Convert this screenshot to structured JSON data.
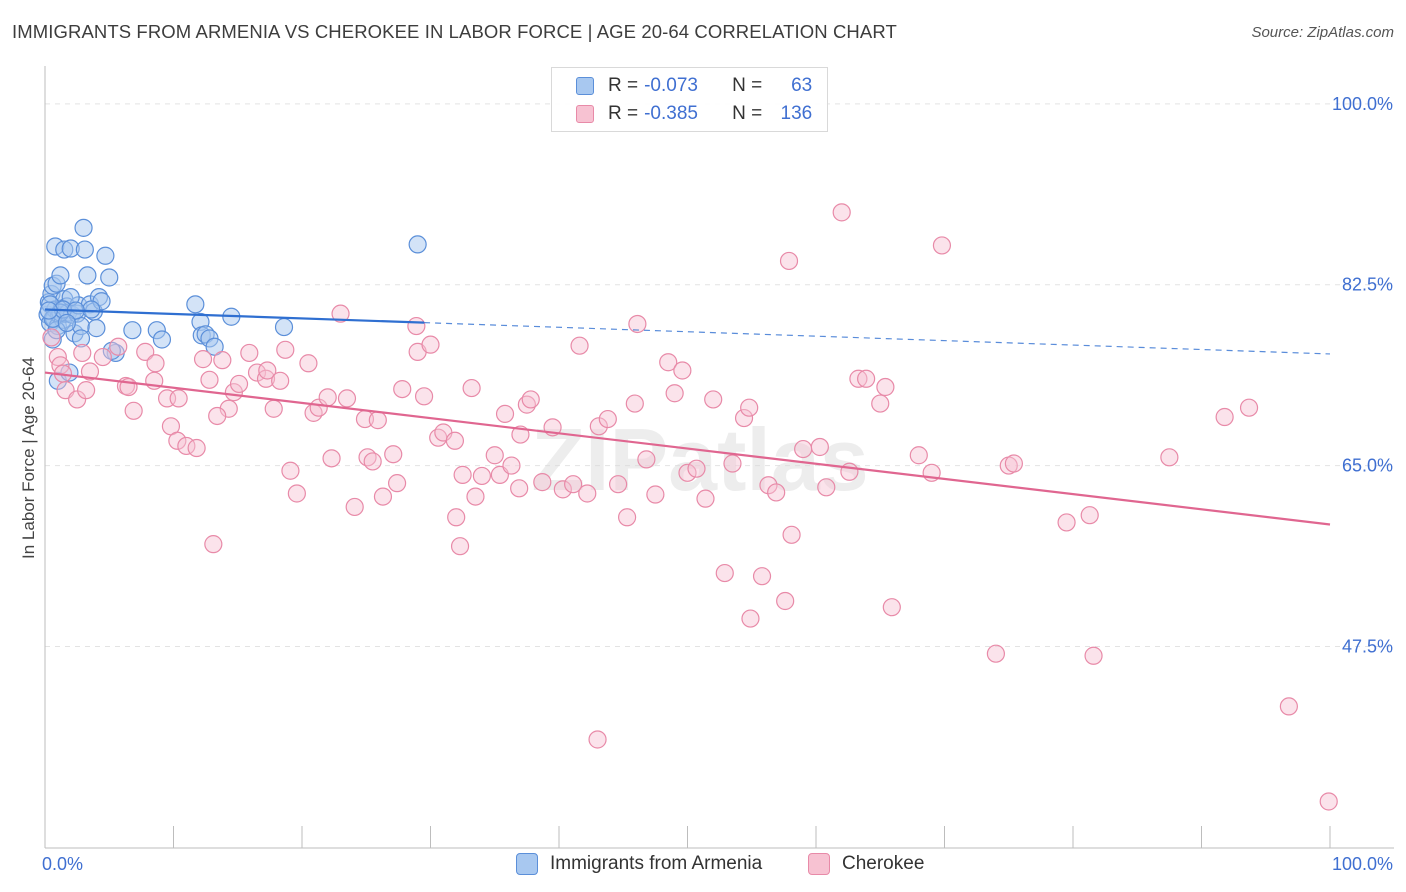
{
  "header": {
    "title": "IMMIGRANTS FROM ARMENIA VS CHEROKEE IN LABOR FORCE | AGE 20-64 CORRELATION CHART",
    "source": "Source: ZipAtlas.com"
  },
  "legend_top": {
    "rows": [
      {
        "r_label": "R =",
        "r_value": "-0.073",
        "n_label": "N =",
        "n_value": "63"
      },
      {
        "r_label": "R =",
        "r_value": "-0.385",
        "n_label": "N =",
        "n_value": "136"
      }
    ]
  },
  "legend_bottom": {
    "items": [
      {
        "label": "Immigrants from Armenia"
      },
      {
        "label": "Cherokee"
      }
    ]
  },
  "watermark": "ZIPatlas",
  "colors": {
    "armenia_fill": "#a8c8f0",
    "armenia_stroke": "#5b8fd9",
    "armenia_line": "#2f6fd1",
    "cherokee_fill": "#f7c2d2",
    "cherokee_stroke": "#e88aa8",
    "cherokee_line": "#e06690",
    "tick_text": "#3f6fd1",
    "grid": "#e3e3e3"
  },
  "chart_data": {
    "type": "scatter",
    "title": "IMMIGRANTS FROM ARMENIA VS CHEROKEE IN LABOR FORCE | AGE 20-64 CORRELATION CHART",
    "xlabel": "",
    "ylabel": "In Labor Force | Age 20-64",
    "xlim": [
      0,
      100
    ],
    "ylim": [
      28.0,
      102.5
    ],
    "x_tick_labels": [
      "0.0%",
      "100.0%"
    ],
    "y_ticks": [
      100.0,
      82.5,
      65.0,
      47.5
    ],
    "y_tick_labels": [
      "100.0%",
      "82.5%",
      "65.0%",
      "47.5%"
    ],
    "grid": true,
    "legend_position": "top-center",
    "series": [
      {
        "name": "Immigrants from Armenia",
        "r": -0.073,
        "n": 63,
        "trend": {
          "x0": 0.0,
          "y0": 80.1,
          "x1": 100.0,
          "y1": 75.8,
          "solid_until_x": 29.5
        },
        "points": [
          [
            0.2,
            79.6
          ],
          [
            0.3,
            80.8
          ],
          [
            0.4,
            78.8
          ],
          [
            0.5,
            81.6
          ],
          [
            0.6,
            82.4
          ],
          [
            0.6,
            77.2
          ],
          [
            0.7,
            79.2
          ],
          [
            0.8,
            86.2
          ],
          [
            0.8,
            80.1
          ],
          [
            0.9,
            82.6
          ],
          [
            1.0,
            78.5
          ],
          [
            1.0,
            73.2
          ],
          [
            1.1,
            79.6
          ],
          [
            1.2,
            83.4
          ],
          [
            1.3,
            80.2
          ],
          [
            1.4,
            79.1
          ],
          [
            1.5,
            85.9
          ],
          [
            1.5,
            81.1
          ],
          [
            1.6,
            79.7
          ],
          [
            1.7,
            80.4
          ],
          [
            1.8,
            79.8
          ],
          [
            1.9,
            74.0
          ],
          [
            2.0,
            86.0
          ],
          [
            2.1,
            79.6
          ],
          [
            2.3,
            77.8
          ],
          [
            2.5,
            79.7
          ],
          [
            2.6,
            80.5
          ],
          [
            2.8,
            78.5
          ],
          [
            2.8,
            77.3
          ],
          [
            3.0,
            88.0
          ],
          [
            3.1,
            85.9
          ],
          [
            3.3,
            83.4
          ],
          [
            3.5,
            80.6
          ],
          [
            3.8,
            79.9
          ],
          [
            4.0,
            78.3
          ],
          [
            4.2,
            81.3
          ],
          [
            4.4,
            80.9
          ],
          [
            4.7,
            85.3
          ],
          [
            5.0,
            83.2
          ],
          [
            5.5,
            75.9
          ],
          [
            6.8,
            78.1
          ],
          [
            8.7,
            78.1
          ],
          [
            9.1,
            77.2
          ],
          [
            11.7,
            80.6
          ],
          [
            12.1,
            78.9
          ],
          [
            12.2,
            77.6
          ],
          [
            12.5,
            77.7
          ],
          [
            12.8,
            77.3
          ],
          [
            13.2,
            76.5
          ],
          [
            14.5,
            79.4
          ],
          [
            18.6,
            78.4
          ],
          [
            29.0,
            86.4
          ],
          [
            0.4,
            80.6
          ],
          [
            1.2,
            79.8
          ],
          [
            2.0,
            81.3
          ],
          [
            0.9,
            78.1
          ],
          [
            5.2,
            76.1
          ],
          [
            3.6,
            80.1
          ],
          [
            0.6,
            79.2
          ],
          [
            1.4,
            80.1
          ],
          [
            2.4,
            80.0
          ],
          [
            0.3,
            80.0
          ],
          [
            1.7,
            78.8
          ]
        ]
      },
      {
        "name": "Cherokee",
        "r": -0.385,
        "n": 136,
        "trend": {
          "x0": 0.0,
          "y0": 74.0,
          "x1": 100.0,
          "y1": 59.3
        },
        "points": [
          [
            0.5,
            77.4
          ],
          [
            1.0,
            75.5
          ],
          [
            1.2,
            74.7
          ],
          [
            1.4,
            73.9
          ],
          [
            1.6,
            72.3
          ],
          [
            2.5,
            71.4
          ],
          [
            2.9,
            75.9
          ],
          [
            3.2,
            72.3
          ],
          [
            3.5,
            74.1
          ],
          [
            4.5,
            75.5
          ],
          [
            5.7,
            76.5
          ],
          [
            6.3,
            72.7
          ],
          [
            6.5,
            72.6
          ],
          [
            6.9,
            70.3
          ],
          [
            7.8,
            76.0
          ],
          [
            8.5,
            73.2
          ],
          [
            8.6,
            74.9
          ],
          [
            9.5,
            71.5
          ],
          [
            9.8,
            68.8
          ],
          [
            10.3,
            67.4
          ],
          [
            10.4,
            71.5
          ],
          [
            11.0,
            66.9
          ],
          [
            11.8,
            66.7
          ],
          [
            12.3,
            75.3
          ],
          [
            12.8,
            73.3
          ],
          [
            13.1,
            57.4
          ],
          [
            13.8,
            75.2
          ],
          [
            14.3,
            70.5
          ],
          [
            14.7,
            72.1
          ],
          [
            15.1,
            72.9
          ],
          [
            15.9,
            75.9
          ],
          [
            16.5,
            74.0
          ],
          [
            17.2,
            73.4
          ],
          [
            17.3,
            74.2
          ],
          [
            17.8,
            70.5
          ],
          [
            18.3,
            73.2
          ],
          [
            18.7,
            76.2
          ],
          [
            19.1,
            64.5
          ],
          [
            19.6,
            62.3
          ],
          [
            20.5,
            74.9
          ],
          [
            20.9,
            70.1
          ],
          [
            21.3,
            70.6
          ],
          [
            22.0,
            71.6
          ],
          [
            22.3,
            65.7
          ],
          [
            23.0,
            79.7
          ],
          [
            23.5,
            71.5
          ],
          [
            24.1,
            61.0
          ],
          [
            24.9,
            69.5
          ],
          [
            25.1,
            65.8
          ],
          [
            25.5,
            65.4
          ],
          [
            25.9,
            69.4
          ],
          [
            26.3,
            62.0
          ],
          [
            27.1,
            66.1
          ],
          [
            27.4,
            63.3
          ],
          [
            27.8,
            72.4
          ],
          [
            28.9,
            78.5
          ],
          [
            29.0,
            76.0
          ],
          [
            29.5,
            71.7
          ],
          [
            30.0,
            76.7
          ],
          [
            30.6,
            67.7
          ],
          [
            31.0,
            68.2
          ],
          [
            32.0,
            60.0
          ],
          [
            32.3,
            57.2
          ],
          [
            32.5,
            64.1
          ],
          [
            33.2,
            72.5
          ],
          [
            33.5,
            62.0
          ],
          [
            34.0,
            64.0
          ],
          [
            35.0,
            66.0
          ],
          [
            35.4,
            64.1
          ],
          [
            35.8,
            70.0
          ],
          [
            36.3,
            65.0
          ],
          [
            37.0,
            68.0
          ],
          [
            37.5,
            70.9
          ],
          [
            37.8,
            71.4
          ],
          [
            38.7,
            63.4
          ],
          [
            39.5,
            68.7
          ],
          [
            40.3,
            62.7
          ],
          [
            41.1,
            63.2
          ],
          [
            41.6,
            76.6
          ],
          [
            42.2,
            62.3
          ],
          [
            43.1,
            68.8
          ],
          [
            43.8,
            69.5
          ],
          [
            44.6,
            63.2
          ],
          [
            45.3,
            60.0
          ],
          [
            45.9,
            71.0
          ],
          [
            46.1,
            78.7
          ],
          [
            46.8,
            65.6
          ],
          [
            47.5,
            62.2
          ],
          [
            48.5,
            75.0
          ],
          [
            49.0,
            72.0
          ],
          [
            49.6,
            74.2
          ],
          [
            50.0,
            64.3
          ],
          [
            50.7,
            64.7
          ],
          [
            51.4,
            61.8
          ],
          [
            52.0,
            71.4
          ],
          [
            52.9,
            54.6
          ],
          [
            54.4,
            69.6
          ],
          [
            54.8,
            70.6
          ],
          [
            54.9,
            50.2
          ],
          [
            55.8,
            54.3
          ],
          [
            56.3,
            63.1
          ],
          [
            56.9,
            62.4
          ],
          [
            57.6,
            51.9
          ],
          [
            57.9,
            84.8
          ],
          [
            58.1,
            58.3
          ],
          [
            59.0,
            66.6
          ],
          [
            60.8,
            62.9
          ],
          [
            62.0,
            89.5
          ],
          [
            62.6,
            64.4
          ],
          [
            63.3,
            73.4
          ],
          [
            63.9,
            73.4
          ],
          [
            65.0,
            71.0
          ],
          [
            65.4,
            72.6
          ],
          [
            65.9,
            51.3
          ],
          [
            68.0,
            66.0
          ],
          [
            69.0,
            64.3
          ],
          [
            69.8,
            86.3
          ],
          [
            74.0,
            46.8
          ],
          [
            75.0,
            65.0
          ],
          [
            75.4,
            65.2
          ],
          [
            79.5,
            59.5
          ],
          [
            81.3,
            60.2
          ],
          [
            81.6,
            46.6
          ],
          [
            87.5,
            65.8
          ],
          [
            91.8,
            69.7
          ],
          [
            93.7,
            70.6
          ],
          [
            96.8,
            41.7
          ],
          [
            99.9,
            32.5
          ],
          [
            43.0,
            38.5
          ],
          [
            53.5,
            65.2
          ],
          [
            36.9,
            62.8
          ],
          [
            31.9,
            67.4
          ],
          [
            13.4,
            69.8
          ],
          [
            60.3,
            66.8
          ]
        ]
      }
    ]
  }
}
